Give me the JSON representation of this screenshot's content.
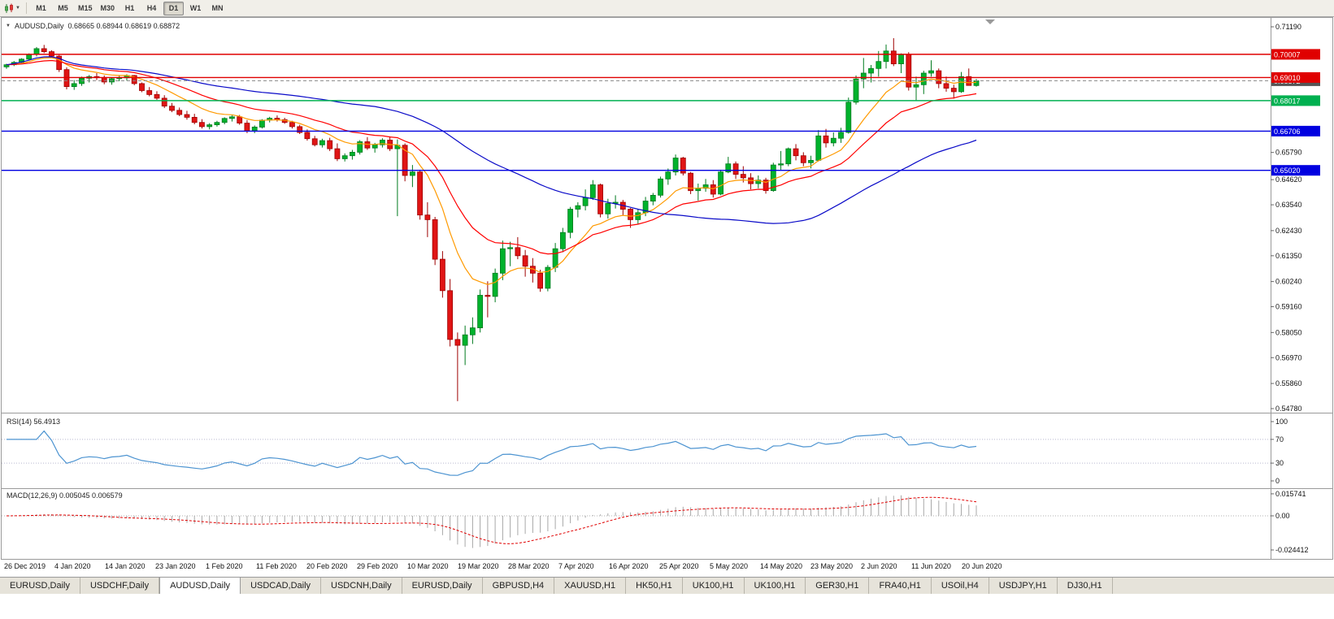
{
  "toolbar": {
    "chart_type_icon": "candlestick-chart-icon",
    "dropdown_icon": "chevron-down-icon",
    "timeframes": [
      "M1",
      "M5",
      "M15",
      "M30",
      "H1",
      "H4",
      "D1",
      "W1",
      "MN"
    ],
    "active_timeframe": "D1"
  },
  "chart_header": {
    "symbol_label": "AUDUSD,Daily",
    "ohlc": "0.68665 0.68944 0.68619 0.68872"
  },
  "indicators": {
    "rsi": {
      "label": "RSI(14) 56.4913",
      "period": 14,
      "value_display": "56.4913",
      "scale_labels": [
        100,
        70,
        30,
        0
      ],
      "levels": [
        70,
        30
      ],
      "line_color": "#4d94d1"
    },
    "macd": {
      "label": "MACD(12,26,9) 0.005045 0.006579",
      "params": [
        12,
        26,
        9
      ],
      "macd_display": "0.005045",
      "signal_display": "0.006579",
      "scale_labels": [
        "0.015741",
        "0.00",
        "-0.024412"
      ],
      "scale_values": [
        0.015741,
        0.0,
        -0.024412
      ],
      "histogram_color": "#a8a8a8",
      "signal_color": "#e00000"
    }
  },
  "chart_data": {
    "type": "candlestick",
    "symbol": "AUDUSD",
    "timeframe": "Daily",
    "title": "AUDUSD,Daily 0.68665 0.68944 0.68619 0.68872",
    "price_range": {
      "min": 0.5478,
      "max": 0.7119
    },
    "y_axis_labels": [
      "0.71190",
      "0.65790",
      "0.64620",
      "0.63540",
      "0.62430",
      "0.61350",
      "0.60240",
      "0.59160",
      "0.58050",
      "0.56970",
      "0.55860",
      "0.54780"
    ],
    "x_axis_labels": [
      "26 Dec 2019",
      "4 Jan 2020",
      "14 Jan 2020",
      "23 Jan 2020",
      "1 Feb 2020",
      "11 Feb 2020",
      "20 Feb 2020",
      "29 Feb 2020",
      "10 Mar 2020",
      "19 Mar 2020",
      "28 Mar 2020",
      "7 Apr 2020",
      "16 Apr 2020",
      "25 Apr 2020",
      "5 May 2020",
      "14 May 2020",
      "23 May 2020",
      "2 Jun 2020",
      "11 Jun 2020",
      "20 Jun 2020"
    ],
    "colors": {
      "up": "#00b22c",
      "up_border": "#007a1e",
      "down": "#e01515",
      "down_border": "#9e0000",
      "background": "#ffffff",
      "frame": "#9a9a9a"
    },
    "moving_averages": [
      {
        "name": "fast-ma",
        "type": "ema",
        "period": 10,
        "color": "#ff9a00"
      },
      {
        "name": "medium-ma",
        "type": "ema",
        "period": 21,
        "color": "#ff0000"
      },
      {
        "name": "slow-ma",
        "type": "sma",
        "period": 50,
        "color": "#0a0ac8"
      }
    ],
    "horizontal_lines": [
      {
        "price": 0.70007,
        "label": "0.70007",
        "color": "#e00000"
      },
      {
        "price": 0.6901,
        "label": "0.69010",
        "color": "#e00000"
      },
      {
        "price": 0.68017,
        "label": "0.68017",
        "color": "#00b050"
      },
      {
        "price": 0.66706,
        "label": "0.66706",
        "color": "#0000e0"
      },
      {
        "price": 0.6502,
        "label": "0.65020",
        "color": "#0000e0"
      }
    ],
    "current_price": {
      "value": 0.68872,
      "label": "0.68872",
      "color": "#555555"
    },
    "candles": [
      [
        0.6947,
        0.696,
        0.6938,
        0.6956
      ],
      [
        0.6956,
        0.6972,
        0.695,
        0.6966
      ],
      [
        0.6966,
        0.6984,
        0.6958,
        0.698
      ],
      [
        0.698,
        0.7005,
        0.6975,
        0.7
      ],
      [
        0.7,
        0.7032,
        0.6992,
        0.7025
      ],
      [
        0.7025,
        0.7041,
        0.7006,
        0.7012
      ],
      [
        0.7012,
        0.7018,
        0.6985,
        0.6993
      ],
      [
        0.6993,
        0.6998,
        0.6925,
        0.6935
      ],
      [
        0.6935,
        0.6945,
        0.685,
        0.6862
      ],
      [
        0.6862,
        0.689,
        0.6848,
        0.6875
      ],
      [
        0.6875,
        0.6905,
        0.6865,
        0.6898
      ],
      [
        0.6898,
        0.6912,
        0.688,
        0.6905
      ],
      [
        0.6905,
        0.692,
        0.689,
        0.69
      ],
      [
        0.69,
        0.691,
        0.6872,
        0.6882
      ],
      [
        0.6882,
        0.6902,
        0.687,
        0.6896
      ],
      [
        0.6896,
        0.6908,
        0.6885,
        0.69
      ],
      [
        0.69,
        0.6915,
        0.6888,
        0.691
      ],
      [
        0.691,
        0.6912,
        0.6868,
        0.6875
      ],
      [
        0.6875,
        0.688,
        0.6838,
        0.6845
      ],
      [
        0.6845,
        0.686,
        0.682,
        0.6828
      ],
      [
        0.6828,
        0.6842,
        0.6805,
        0.6812
      ],
      [
        0.6812,
        0.6825,
        0.677,
        0.6778
      ],
      [
        0.6778,
        0.6792,
        0.6752,
        0.676
      ],
      [
        0.676,
        0.6772,
        0.6735,
        0.6742
      ],
      [
        0.6742,
        0.6758,
        0.672,
        0.673
      ],
      [
        0.673,
        0.6745,
        0.67,
        0.6708
      ],
      [
        0.6708,
        0.6722,
        0.6682,
        0.669
      ],
      [
        0.669,
        0.6705,
        0.6678,
        0.6698
      ],
      [
        0.6698,
        0.6715,
        0.669,
        0.6708
      ],
      [
        0.6708,
        0.673,
        0.67,
        0.6725
      ],
      [
        0.6725,
        0.6738,
        0.6712,
        0.6732
      ],
      [
        0.6732,
        0.674,
        0.6698,
        0.6705
      ],
      [
        0.6705,
        0.6718,
        0.6662,
        0.6672
      ],
      [
        0.6672,
        0.6695,
        0.6662,
        0.6688
      ],
      [
        0.6688,
        0.6722,
        0.6682,
        0.6718
      ],
      [
        0.6718,
        0.6732,
        0.6708,
        0.6726
      ],
      [
        0.6726,
        0.6738,
        0.6712,
        0.672
      ],
      [
        0.672,
        0.6728,
        0.6702,
        0.6708
      ],
      [
        0.6708,
        0.6715,
        0.6682,
        0.669
      ],
      [
        0.669,
        0.6698,
        0.6658,
        0.6665
      ],
      [
        0.6665,
        0.6678,
        0.663,
        0.6638
      ],
      [
        0.6638,
        0.665,
        0.6605,
        0.6612
      ],
      [
        0.6612,
        0.6638,
        0.66,
        0.663
      ],
      [
        0.663,
        0.6642,
        0.6585,
        0.6595
      ],
      [
        0.6595,
        0.6618,
        0.6542,
        0.6552
      ],
      [
        0.6552,
        0.6575,
        0.654,
        0.6565
      ],
      [
        0.6565,
        0.659,
        0.6548,
        0.658
      ],
      [
        0.658,
        0.6632,
        0.657,
        0.6625
      ],
      [
        0.6625,
        0.6645,
        0.659,
        0.6598
      ],
      [
        0.6598,
        0.662,
        0.6578,
        0.6612
      ],
      [
        0.6612,
        0.664,
        0.66,
        0.6632
      ],
      [
        0.6632,
        0.6648,
        0.6585,
        0.6595
      ],
      [
        0.6595,
        0.6635,
        0.6305,
        0.661
      ],
      [
        0.661,
        0.6618,
        0.6455,
        0.648
      ],
      [
        0.648,
        0.6525,
        0.643,
        0.6495
      ],
      [
        0.6495,
        0.6505,
        0.629,
        0.631
      ],
      [
        0.631,
        0.6365,
        0.6215,
        0.629
      ],
      [
        0.629,
        0.6302,
        0.6095,
        0.612
      ],
      [
        0.612,
        0.6155,
        0.5955,
        0.5985
      ],
      [
        0.5985,
        0.6035,
        0.5745,
        0.5775
      ],
      [
        0.5775,
        0.5805,
        0.551,
        0.575
      ],
      [
        0.575,
        0.5835,
        0.5665,
        0.5795
      ],
      [
        0.5795,
        0.587,
        0.5756,
        0.5825
      ],
      [
        0.5825,
        0.599,
        0.5805,
        0.5965
      ],
      [
        0.5965,
        0.6025,
        0.587,
        0.596
      ],
      [
        0.596,
        0.608,
        0.5935,
        0.606
      ],
      [
        0.606,
        0.62,
        0.603,
        0.6165
      ],
      [
        0.6165,
        0.6195,
        0.609,
        0.617
      ],
      [
        0.617,
        0.6215,
        0.612,
        0.6135
      ],
      [
        0.6135,
        0.616,
        0.6045,
        0.609
      ],
      [
        0.609,
        0.6125,
        0.602,
        0.606
      ],
      [
        0.606,
        0.6075,
        0.598,
        0.5995
      ],
      [
        0.5995,
        0.6095,
        0.5982,
        0.6085
      ],
      [
        0.6085,
        0.619,
        0.6065,
        0.6165
      ],
      [
        0.6165,
        0.6255,
        0.615,
        0.6235
      ],
      [
        0.6235,
        0.6345,
        0.621,
        0.6335
      ],
      [
        0.6335,
        0.6365,
        0.63,
        0.635
      ],
      [
        0.635,
        0.642,
        0.633,
        0.6385
      ],
      [
        0.6385,
        0.646,
        0.6375,
        0.644
      ],
      [
        0.644,
        0.6445,
        0.63,
        0.6315
      ],
      [
        0.6315,
        0.638,
        0.6295,
        0.636
      ],
      [
        0.636,
        0.6395,
        0.6338,
        0.6365
      ],
      [
        0.6365,
        0.6375,
        0.631,
        0.6335
      ],
      [
        0.6335,
        0.634,
        0.6255,
        0.629
      ],
      [
        0.629,
        0.6335,
        0.627,
        0.632
      ],
      [
        0.632,
        0.6388,
        0.6305,
        0.637
      ],
      [
        0.637,
        0.6405,
        0.6352,
        0.6395
      ],
      [
        0.6395,
        0.6475,
        0.6385,
        0.6465
      ],
      [
        0.6465,
        0.651,
        0.644,
        0.6495
      ],
      [
        0.6495,
        0.657,
        0.648,
        0.6555
      ],
      [
        0.6555,
        0.656,
        0.648,
        0.649
      ],
      [
        0.649,
        0.6495,
        0.64,
        0.6415
      ],
      [
        0.6415,
        0.6445,
        0.6372,
        0.6425
      ],
      [
        0.6425,
        0.6465,
        0.641,
        0.644
      ],
      [
        0.644,
        0.646,
        0.6385,
        0.64
      ],
      [
        0.64,
        0.6505,
        0.6395,
        0.6495
      ],
      [
        0.6495,
        0.656,
        0.649,
        0.653
      ],
      [
        0.653,
        0.654,
        0.6465,
        0.6485
      ],
      [
        0.6485,
        0.652,
        0.645,
        0.647
      ],
      [
        0.647,
        0.649,
        0.642,
        0.6445
      ],
      [
        0.6445,
        0.648,
        0.6425,
        0.646
      ],
      [
        0.646,
        0.647,
        0.6402,
        0.6415
      ],
      [
        0.6415,
        0.6535,
        0.641,
        0.6525
      ],
      [
        0.6525,
        0.6585,
        0.6505,
        0.653
      ],
      [
        0.653,
        0.66,
        0.652,
        0.6595
      ],
      [
        0.6595,
        0.6615,
        0.6545,
        0.6565
      ],
      [
        0.6565,
        0.658,
        0.652,
        0.6535
      ],
      [
        0.6535,
        0.6565,
        0.651,
        0.6545
      ],
      [
        0.6545,
        0.6675,
        0.654,
        0.665
      ],
      [
        0.665,
        0.668,
        0.66,
        0.662
      ],
      [
        0.662,
        0.6665,
        0.6605,
        0.664
      ],
      [
        0.664,
        0.6685,
        0.662,
        0.6665
      ],
      [
        0.6665,
        0.6815,
        0.666,
        0.6795
      ],
      [
        0.6795,
        0.691,
        0.6785,
        0.6895
      ],
      [
        0.6895,
        0.6985,
        0.6855,
        0.692
      ],
      [
        0.692,
        0.6955,
        0.688,
        0.694
      ],
      [
        0.694,
        0.7015,
        0.6905,
        0.697
      ],
      [
        0.697,
        0.7043,
        0.694,
        0.7015
      ],
      [
        0.7015,
        0.707,
        0.695,
        0.696
      ],
      [
        0.696,
        0.7005,
        0.692,
        0.7
      ],
      [
        0.7,
        0.701,
        0.6845,
        0.686
      ],
      [
        0.686,
        0.6905,
        0.68,
        0.687
      ],
      [
        0.687,
        0.693,
        0.683,
        0.692
      ],
      [
        0.692,
        0.6975,
        0.6905,
        0.693
      ],
      [
        0.693,
        0.694,
        0.6855,
        0.6875
      ],
      [
        0.6875,
        0.6905,
        0.684,
        0.6855
      ],
      [
        0.6855,
        0.687,
        0.681,
        0.684
      ],
      [
        0.684,
        0.6925,
        0.6835,
        0.6905
      ],
      [
        0.6905,
        0.694,
        0.688,
        0.6867
      ],
      [
        0.68665,
        0.68944,
        0.68619,
        0.68872
      ]
    ]
  },
  "tabs": {
    "items": [
      "EURUSD,Daily",
      "USDCHF,Daily",
      "AUDUSD,Daily",
      "USDCAD,Daily",
      "USDCNH,Daily",
      "EURUSD,Daily",
      "GBPUSD,H4",
      "XAUUSD,H1",
      "HK50,H1",
      "UK100,H1",
      "UK100,H1",
      "GER30,H1",
      "FRA40,H1",
      "USOil,H4",
      "USDJPY,H1",
      "DJ30,H1"
    ],
    "active_index": 2
  }
}
